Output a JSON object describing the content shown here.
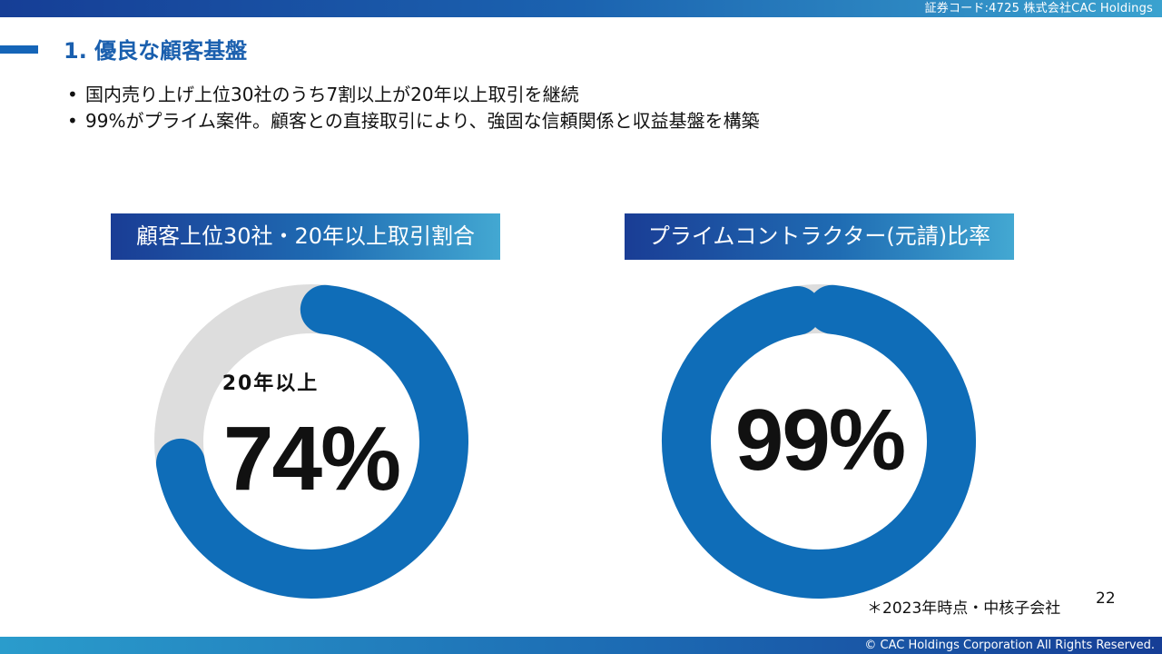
{
  "header": {
    "company_code": "証券コード:4725  株式会社CAC Holdings"
  },
  "section": {
    "title": "1. 優良な顧客基盤"
  },
  "bullets": [
    "国内売り上げ上位30社のうち7割以上が20年以上取引を継続",
    "99%がプライム案件。顧客との直接取引により、強固な信頼関係と収益基盤を構築"
  ],
  "colors": {
    "accent": "#1a5fae",
    "ring_filled": "#0f6db8",
    "ring_empty": "#dddddd"
  },
  "chart_data": [
    {
      "type": "pie",
      "title": "顧客上位30社・20年以上取引割合",
      "center_label": "20年以上",
      "center_value": "74%",
      "values": [
        74,
        26
      ]
    },
    {
      "type": "pie",
      "title": "プライムコントラクター(元請)比率",
      "center_value": "99%",
      "values": [
        99,
        1
      ]
    }
  ],
  "footnote": "＊2023年時点・中核子会社",
  "page_number": "22",
  "footer": {
    "copyright": "© CAC Holdings Corporation All Rights Reserved."
  }
}
